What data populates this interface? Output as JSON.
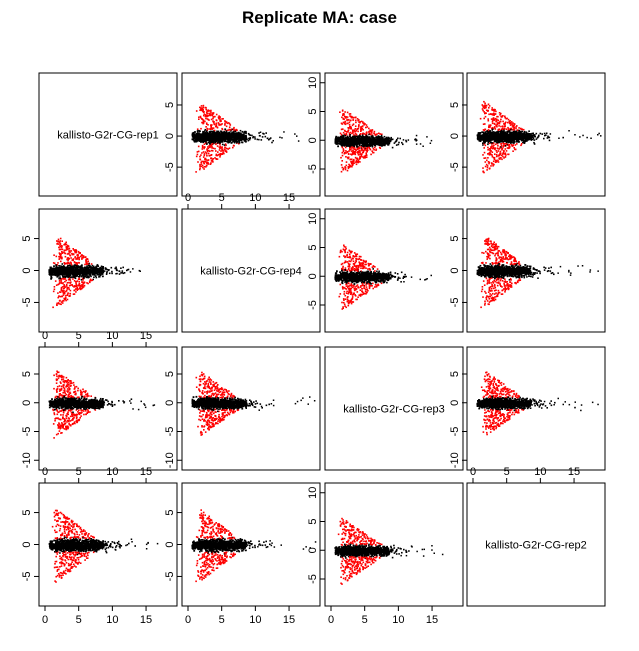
{
  "title": "Replicate MA: case",
  "colors": {
    "significant": "#ff0000",
    "background": "#000000",
    "frame": "#000000"
  },
  "samples": [
    "kallisto-G2r-CG-rep1",
    "kallisto-G2r-CG-rep4",
    "kallisto-G2r-CG-rep3",
    "kallisto-G2r-CG-rep2"
  ],
  "chart_data": {
    "type": "scatter",
    "title": "Replicate MA: case",
    "layout": "4x4 pairs matrix, diagonal shows sample names",
    "x_ticks": [
      0,
      5,
      10,
      15
    ],
    "x_range": [
      0,
      19
    ],
    "panels": [
      {
        "row": 0,
        "col": 0,
        "diagonal": true,
        "label": "kallisto-G2r-CG-rep1"
      },
      {
        "row": 0,
        "col": 1,
        "ylim": [
          -9,
          9.5
        ],
        "y_ticks": [
          -5,
          0,
          5
        ],
        "xaxis": "none",
        "yaxis": "left",
        "spread": 5.8,
        "max_x": 17
      },
      {
        "row": 0,
        "col": 2,
        "ylim": [
          -9,
          11
        ],
        "y_ticks": [
          -5,
          0,
          5,
          10
        ],
        "xaxis": "none",
        "yaxis": "left",
        "spread": 5.8,
        "max_x": 15
      },
      {
        "row": 0,
        "col": 3,
        "ylim": [
          -9,
          9.5
        ],
        "y_ticks": [
          -5,
          0,
          5
        ],
        "xaxis": "none",
        "yaxis": "left",
        "spread": 5.8,
        "max_x": 19
      },
      {
        "row": 1,
        "col": 0,
        "ylim": [
          -9,
          9
        ],
        "y_ticks": [
          -5,
          0,
          5
        ],
        "xaxis": "none",
        "yaxis": "left",
        "spread": 5.8,
        "max_x": 17
      },
      {
        "row": 1,
        "col": 1,
        "diagonal": true,
        "label": "kallisto-G2r-CG-rep4",
        "xaxis": "top"
      },
      {
        "row": 1,
        "col": 2,
        "ylim": [
          -9,
          11
        ],
        "y_ticks": [
          -5,
          0,
          5,
          10
        ],
        "xaxis": "none",
        "yaxis": "left",
        "spread": 5.8,
        "max_x": 15
      },
      {
        "row": 1,
        "col": 3,
        "ylim": [
          -9,
          9
        ],
        "y_ticks": [
          -5,
          0,
          5
        ],
        "xaxis": "none",
        "yaxis": "left",
        "spread": 5.8,
        "max_x": 19
      },
      {
        "row": 2,
        "col": 0,
        "ylim": [
          -11,
          9
        ],
        "y_ticks": [
          -10,
          -5,
          0,
          5
        ],
        "xaxis": "top",
        "yaxis": "left",
        "spread": 5.8,
        "max_x": 17
      },
      {
        "row": 2,
        "col": 1,
        "ylim": [
          -11,
          9
        ],
        "y_ticks": [
          -10,
          -5,
          0,
          5
        ],
        "xaxis": "none",
        "yaxis": "left",
        "spread": 5.8,
        "max_x": 19
      },
      {
        "row": 2,
        "col": 2,
        "diagonal": true,
        "label": "kallisto-G2r-CG-rep3"
      },
      {
        "row": 2,
        "col": 3,
        "ylim": [
          -11,
          9
        ],
        "y_ticks": [
          -10,
          -5,
          0,
          5
        ],
        "xaxis": "none",
        "yaxis": "left",
        "spread": 5.8,
        "max_x": 19
      },
      {
        "row": 3,
        "col": 0,
        "ylim": [
          -9,
          9
        ],
        "y_ticks": [
          -5,
          0,
          5
        ],
        "xaxis": "both",
        "yaxis": "left",
        "spread": 5.8,
        "max_x": 17
      },
      {
        "row": 3,
        "col": 1,
        "ylim": [
          -9,
          9
        ],
        "y_ticks": [
          -5,
          0,
          5
        ],
        "xaxis": "bottom",
        "yaxis": "left",
        "spread": 5.8,
        "max_x": 19
      },
      {
        "row": 3,
        "col": 2,
        "ylim": [
          -9,
          11
        ],
        "y_ticks": [
          -5,
          0,
          5,
          10
        ],
        "xaxis": "bottom",
        "yaxis": "left",
        "spread": 5.8,
        "max_x": 17
      },
      {
        "row": 3,
        "col": 3,
        "diagonal": true,
        "label": "kallisto-G2r-CG-rep2",
        "xaxis": "top"
      }
    ]
  }
}
